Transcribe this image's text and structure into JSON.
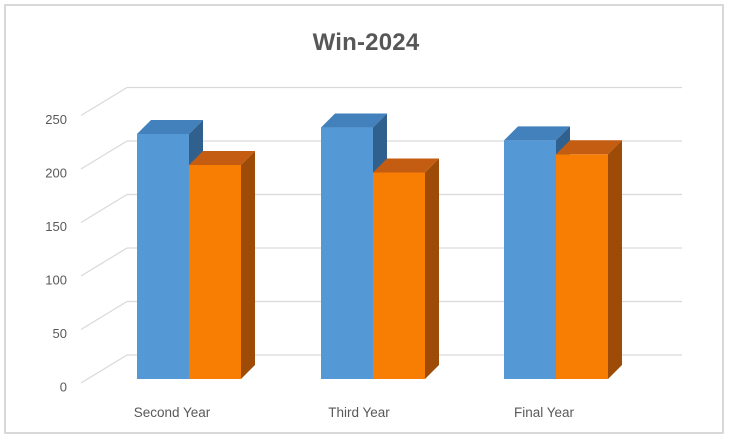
{
  "frame": {
    "background": "#FFFFFF",
    "border_color": "#D8D8D8"
  },
  "chart_data": {
    "type": "bar",
    "style": "3d-clustered-column",
    "title": "Win-2024",
    "title_color": "#575757",
    "categories": [
      "Second Year",
      "Third Year",
      "Final Year"
    ],
    "series": [
      {
        "color_front": "#5598D6",
        "color_top": "#4381BD",
        "color_side": "#2F608E",
        "values": [
          229,
          235,
          223
        ]
      },
      {
        "color_front": "#F87D03",
        "color_top": "#C45C12",
        "color_side": "#9D4B06",
        "values": [
          200,
          193,
          210
        ]
      }
    ],
    "y_axis": {
      "min": 0,
      "max": 250,
      "step": 50,
      "tick_labels": [
        "0",
        "50",
        "100",
        "150",
        "200",
        "250"
      ]
    },
    "x_axis": {
      "labels": [
        "Second Year",
        "Third Year",
        "Final Year"
      ]
    },
    "legend": "none",
    "grid": true,
    "gridline_color": "#D9D9D9",
    "axis_text_color": "#595959"
  }
}
